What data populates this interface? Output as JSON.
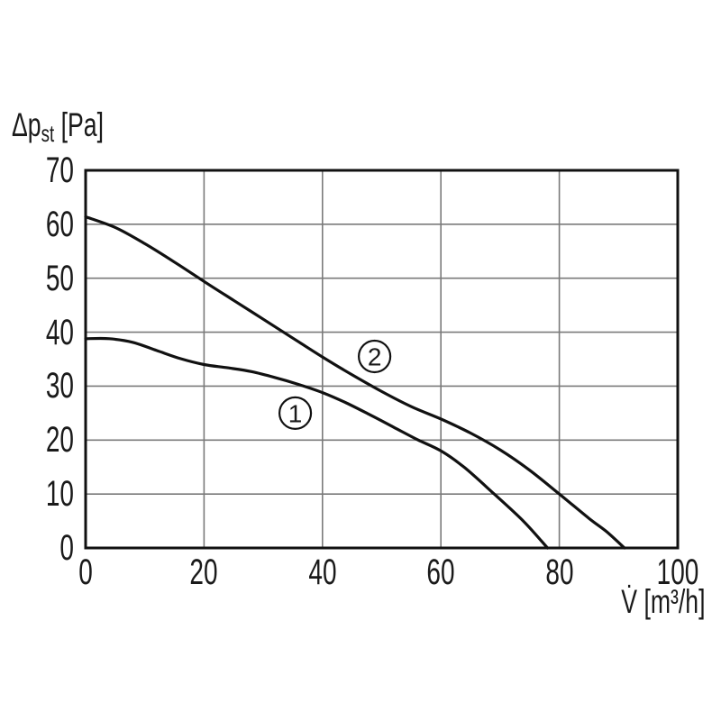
{
  "chart_data": {
    "type": "line",
    "title": "",
    "grid": true,
    "legend_position": "circled-numbers-on-curves",
    "y_axis": {
      "label_main": "Δp",
      "label_sub": "st",
      "label_unit": " [Pa]",
      "ticks": [
        0,
        10,
        20,
        30,
        40,
        50,
        60,
        70
      ],
      "range": [
        0,
        70
      ]
    },
    "x_axis": {
      "label_main": "V̇",
      "label_unit": " [m³/h]",
      "ticks": [
        0,
        20,
        40,
        60,
        80,
        100
      ],
      "range": [
        0,
        100
      ]
    },
    "series": [
      {
        "name": "1",
        "label": "1",
        "label_pos": {
          "x": 35.4,
          "y": 25.0
        },
        "points": [
          [
            0,
            38.8
          ],
          [
            4,
            38.8
          ],
          [
            8,
            38.1
          ],
          [
            12,
            36.6
          ],
          [
            16,
            35.1
          ],
          [
            20,
            34.0
          ],
          [
            24,
            33.4
          ],
          [
            28,
            32.7
          ],
          [
            32,
            31.6
          ],
          [
            36,
            30.3
          ],
          [
            40,
            28.8
          ],
          [
            44,
            26.9
          ],
          [
            48,
            24.7
          ],
          [
            52,
            22.4
          ],
          [
            56,
            20.1
          ],
          [
            60,
            18.0
          ],
          [
            64,
            14.9
          ],
          [
            69,
            10.0
          ],
          [
            74,
            4.9
          ],
          [
            78,
            0
          ]
        ]
      },
      {
        "name": "2",
        "label": "2",
        "label_pos": {
          "x": 48.8,
          "y": 35.5
        },
        "points": [
          [
            0,
            61.4
          ],
          [
            5,
            59.4
          ],
          [
            10,
            56.4
          ],
          [
            15,
            53.0
          ],
          [
            20,
            49.4
          ],
          [
            25,
            45.9
          ],
          [
            30,
            42.4
          ],
          [
            35,
            38.9
          ],
          [
            40,
            35.4
          ],
          [
            45,
            32.1
          ],
          [
            50,
            29.0
          ],
          [
            55,
            26.2
          ],
          [
            60,
            23.9
          ],
          [
            65,
            21.3
          ],
          [
            70,
            18.2
          ],
          [
            75,
            14.4
          ],
          [
            80,
            10.0
          ],
          [
            85,
            5.5
          ],
          [
            88,
            3.0
          ],
          [
            91,
            0
          ]
        ]
      }
    ],
    "colors": {
      "curve": "#111111",
      "grid": "#7a7a7a",
      "border": "#111111",
      "text": "#1a1a1a",
      "background": "#ffffff",
      "circle_fill": "#ffffff"
    }
  }
}
